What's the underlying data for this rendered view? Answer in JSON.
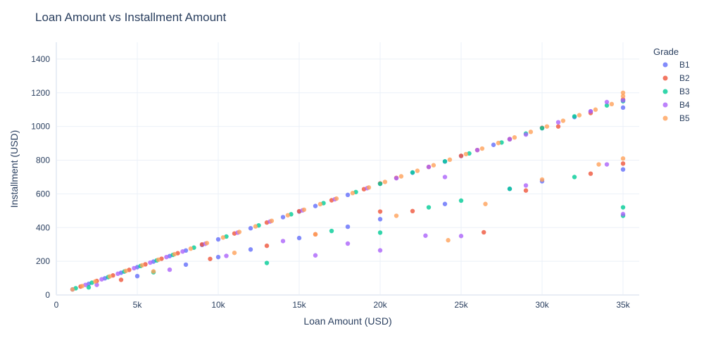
{
  "chart_data": {
    "type": "scatter",
    "title": "Loan Amount vs Installment Amount",
    "xlabel": "Loan Amount (USD)",
    "ylabel": "Installment (USD)",
    "xlim": [
      0,
      36000
    ],
    "ylim": [
      0,
      1500
    ],
    "x_ticks": [
      0,
      5000,
      10000,
      15000,
      20000,
      25000,
      30000,
      35000
    ],
    "x_tick_labels": [
      "0",
      "5k",
      "10k",
      "15k",
      "20k",
      "25k",
      "30k",
      "35k"
    ],
    "y_ticks": [
      0,
      200,
      400,
      600,
      800,
      1000,
      1200,
      1400
    ],
    "y_tick_labels": [
      "0",
      "200",
      "400",
      "600",
      "800",
      "1000",
      "1200",
      "1400"
    ],
    "grid": true,
    "legend_title": "Grade",
    "legend_position": "right",
    "series": [
      {
        "name": "B1",
        "color": "#636efa",
        "x": [
          1000,
          2000,
          3000,
          4000,
          5000,
          6000,
          7000,
          8000,
          9000,
          10000,
          12000,
          14000,
          15000,
          16000,
          18000,
          20000,
          22000,
          24000,
          25000,
          27000,
          28000,
          30000,
          32000,
          33000,
          35000,
          35000,
          5000,
          8000,
          10000,
          12000,
          15000,
          18000,
          20000,
          24000,
          28000,
          30000,
          35000
        ],
        "y": [
          33,
          66,
          99,
          132,
          165,
          198,
          231,
          264,
          297,
          330,
          396,
          462,
          495,
          528,
          594,
          660,
          726,
          792,
          825,
          891,
          924,
          990,
          1056,
          1089,
          1112,
          1155,
          112,
          180,
          225,
          270,
          338,
          405,
          450,
          540,
          630,
          675,
          745
        ]
      },
      {
        "name": "B2",
        "color": "#ef553b",
        "x": [
          1500,
          2500,
          3500,
          4500,
          5500,
          6500,
          7500,
          9000,
          11000,
          13000,
          15000,
          17000,
          19000,
          20000,
          21000,
          23000,
          25000,
          26000,
          28000,
          30000,
          31000,
          33000,
          35000,
          4000,
          9500,
          13000,
          16000,
          20000,
          22000,
          26400,
          29000,
          33000,
          35000
        ],
        "y": [
          50,
          83,
          116,
          149,
          182,
          215,
          248,
          300,
          365,
          430,
          497,
          562,
          628,
          662,
          695,
          760,
          826,
          860,
          925,
          992,
          1000,
          1080,
          1160,
          90,
          214,
          292,
          360,
          495,
          498,
          372,
          620,
          720,
          780
        ]
      },
      {
        "name": "B3",
        "color": "#00cc96",
        "x": [
          1200,
          2200,
          3200,
          4200,
          5200,
          6200,
          7200,
          8500,
          10500,
          12500,
          14500,
          16500,
          18500,
          20000,
          22000,
          24000,
          25500,
          27500,
          29000,
          30000,
          32000,
          34000,
          35000,
          2000,
          6000,
          13000,
          17000,
          20000,
          23000,
          25000,
          28000,
          32000,
          35000,
          35000
        ],
        "y": [
          40,
          73,
          106,
          139,
          172,
          205,
          238,
          281,
          347,
          413,
          479,
          545,
          611,
          660,
          727,
          793,
          840,
          905,
          958,
          990,
          1060,
          1125,
          1150,
          45,
          135,
          190,
          380,
          370,
          520,
          560,
          630,
          700,
          520,
          470
        ]
      },
      {
        "name": "B4",
        "color": "#ab63fa",
        "x": [
          1800,
          2800,
          3800,
          4800,
          5800,
          6800,
          7800,
          9200,
          11200,
          13200,
          15200,
          17200,
          19200,
          21000,
          23000,
          24000,
          26000,
          28000,
          29000,
          31000,
          33000,
          34000,
          35000,
          2500,
          7000,
          10500,
          14000,
          16000,
          18000,
          20000,
          22800,
          25000,
          29000,
          34000,
          35000
        ],
        "y": [
          60,
          93,
          126,
          159,
          192,
          225,
          258,
          304,
          370,
          436,
          502,
          568,
          634,
          693,
          760,
          700,
          860,
          925,
          952,
          1025,
          1090,
          1145,
          1155,
          60,
          150,
          232,
          320,
          235,
          305,
          265,
          352,
          350,
          650,
          775,
          480
        ]
      },
      {
        "name": "B5",
        "color": "#ffa15a",
        "x": [
          1000,
          1600,
          2400,
          3300,
          4300,
          5300,
          6300,
          7300,
          8300,
          9300,
          10300,
          11300,
          12300,
          13300,
          14300,
          15300,
          16300,
          17300,
          18300,
          19300,
          20300,
          21300,
          22300,
          23300,
          24300,
          25300,
          26300,
          27300,
          28300,
          29300,
          30300,
          31300,
          32300,
          33300,
          34300,
          35000,
          35000,
          6000,
          11000,
          16000,
          21000,
          24200,
          26500,
          30000,
          33500,
          35000
        ],
        "y": [
          33,
          53,
          80,
          110,
          143,
          176,
          209,
          242,
          275,
          308,
          341,
          374,
          407,
          440,
          473,
          506,
          539,
          572,
          605,
          638,
          671,
          704,
          737,
          770,
          803,
          836,
          869,
          902,
          935,
          968,
          1000,
          1034,
          1067,
          1100,
          1133,
          1200,
          1180,
          140,
          250,
          360,
          470,
          325,
          540,
          685,
          775,
          810
        ]
      }
    ]
  }
}
